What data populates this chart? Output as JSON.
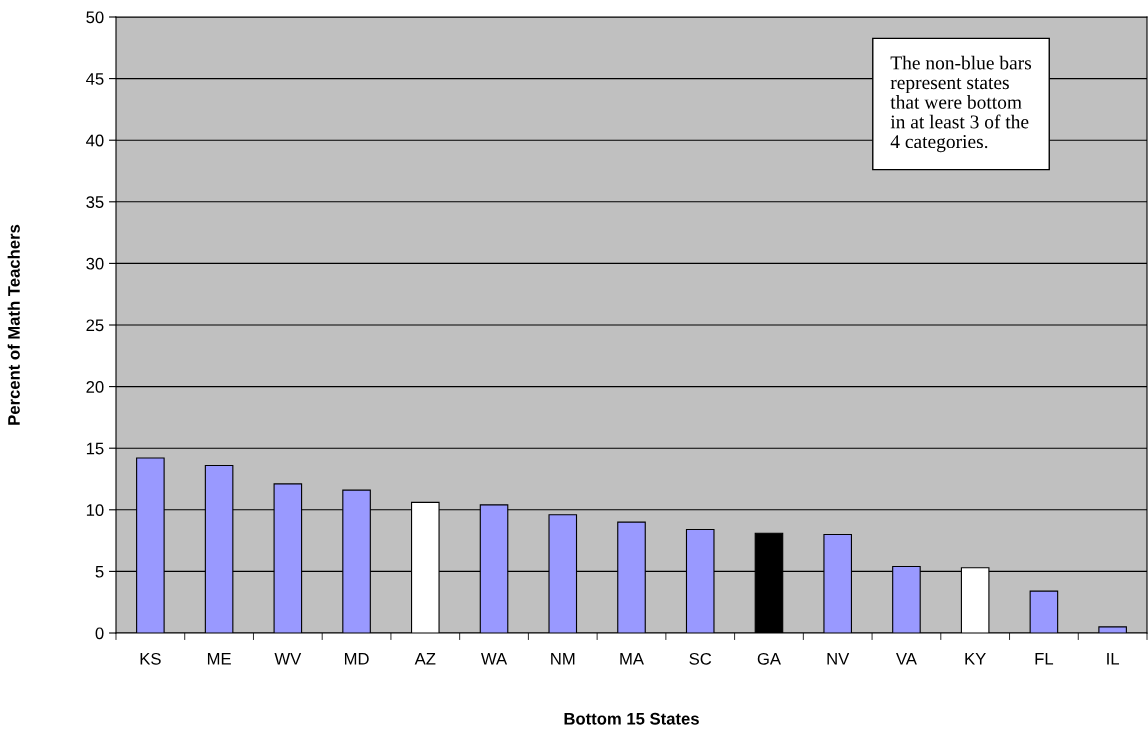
{
  "chart_data": {
    "type": "bar",
    "xlabel": "Bottom 15 States",
    "ylabel": "Percent of Math Teachers",
    "categories": [
      "KS",
      "ME",
      "WV",
      "MD",
      "AZ",
      "WA",
      "NM",
      "MA",
      "SC",
      "GA",
      "NV",
      "VA",
      "KY",
      "FL",
      "IL"
    ],
    "values": [
      14.2,
      13.6,
      12.1,
      11.6,
      10.6,
      10.4,
      9.6,
      9.0,
      8.4,
      8.1,
      8.0,
      5.4,
      5.3,
      3.4,
      0.5
    ],
    "colors": [
      "#9999ff",
      "#9999ff",
      "#9999ff",
      "#9999ff",
      "#ffffff",
      "#9999ff",
      "#9999ff",
      "#9999ff",
      "#9999ff",
      "#000000",
      "#9999ff",
      "#9999ff",
      "#ffffff",
      "#9999ff",
      "#9999ff"
    ],
    "ylim": [
      0,
      50
    ],
    "yticks": [
      0,
      5,
      10,
      15,
      20,
      25,
      30,
      35,
      40,
      45,
      50
    ],
    "grid": "y",
    "legend": false,
    "annotations": [
      "The non-blue bars\nrepresent states\nthat were bottom\nin at least 3 of the\n4 categories."
    ]
  }
}
